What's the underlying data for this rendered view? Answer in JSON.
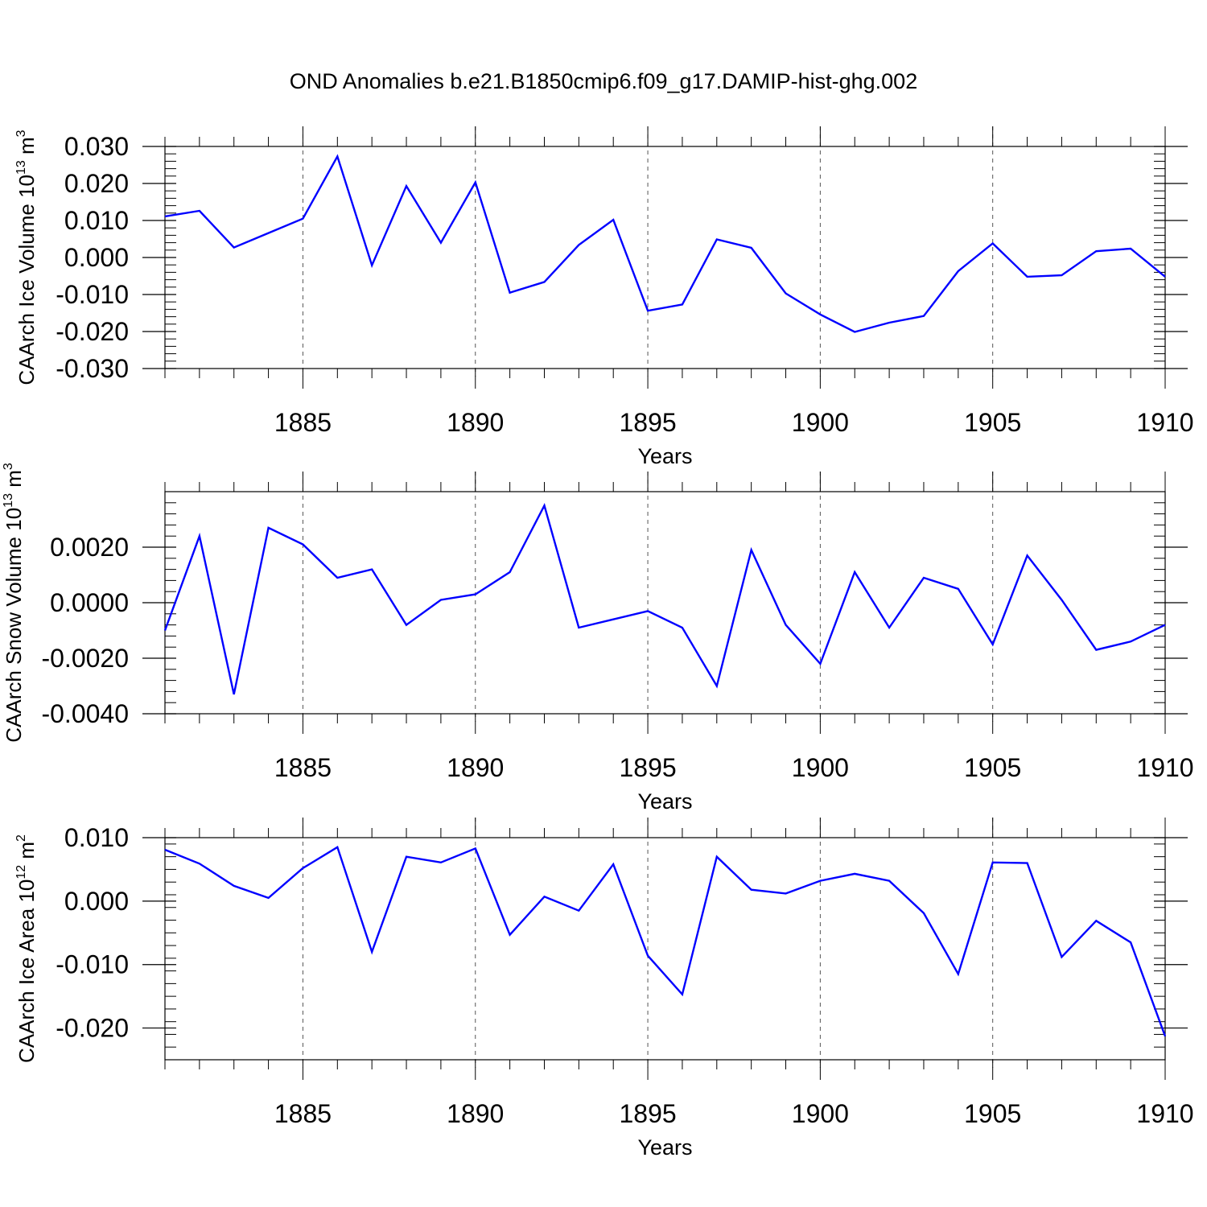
{
  "chart_data": {
    "type": "line",
    "title": "OND Anomalies b.e21.B1850cmip6.f09_g17.DAMIP-hist-ghg.002",
    "line_color": "#0000ff",
    "panels": [
      {
        "name": "ice-volume",
        "ylabel": "CAArch Ice Volume 10",
        "ylabel_exp": "13",
        "ylabel_unit": " m",
        "ylabel_unit_exp": "3",
        "xlabel": "Years",
        "xlim": [
          1881,
          1910
        ],
        "ylim": [
          -0.03,
          0.03
        ],
        "yticks": [
          -0.03,
          -0.02,
          -0.01,
          0.0,
          0.01,
          0.02,
          0.03
        ],
        "ytick_labels": [
          "-0.030",
          "-0.020",
          "-0.010",
          "0.000",
          "0.010",
          "0.020",
          "0.030"
        ],
        "yminor_step": 0.002,
        "xticks": [
          1885,
          1890,
          1895,
          1900,
          1905,
          1910
        ],
        "xtick_labels": [
          "1885",
          "1890",
          "1895",
          "1900",
          "1905",
          "1910"
        ],
        "x": [
          1881,
          1882,
          1883,
          1884,
          1885,
          1886,
          1887,
          1888,
          1889,
          1890,
          1891,
          1892,
          1893,
          1894,
          1895,
          1896,
          1897,
          1898,
          1899,
          1900,
          1901,
          1902,
          1903,
          1904,
          1905,
          1906,
          1907,
          1908,
          1909,
          1910
        ],
        "values": [
          0.0111,
          0.0126,
          0.0027,
          0.0066,
          0.0105,
          0.0273,
          -0.0021,
          0.0193,
          0.004,
          0.0203,
          -0.0095,
          -0.0066,
          0.0034,
          0.0102,
          -0.0144,
          -0.0127,
          0.0049,
          0.0026,
          -0.0097,
          -0.0154,
          -0.0201,
          -0.0176,
          -0.0158,
          -0.0037,
          0.0038,
          -0.0052,
          -0.0048,
          0.0017,
          0.0024,
          -0.0052
        ]
      },
      {
        "name": "snow-volume",
        "ylabel": "CAArch Snow Volume 10",
        "ylabel_exp": "13",
        "ylabel_unit": " m",
        "ylabel_unit_exp": "3",
        "xlabel": "Years",
        "xlim": [
          1881,
          1910
        ],
        "ylim": [
          -0.004,
          0.004
        ],
        "yticks": [
          -0.004,
          -0.002,
          0.0,
          0.002
        ],
        "ytick_labels": [
          "-0.0040",
          "-0.0020",
          "0.0000",
          "0.0020"
        ],
        "yminor_step": 0.0004,
        "xticks": [
          1885,
          1890,
          1895,
          1900,
          1905,
          1910
        ],
        "xtick_labels": [
          "1885",
          "1890",
          "1895",
          "1900",
          "1905",
          "1910"
        ],
        "x": [
          1881,
          1882,
          1883,
          1884,
          1885,
          1886,
          1887,
          1888,
          1889,
          1890,
          1891,
          1892,
          1893,
          1894,
          1895,
          1896,
          1897,
          1898,
          1899,
          1900,
          1901,
          1902,
          1903,
          1904,
          1905,
          1906,
          1907,
          1908,
          1909,
          1910
        ],
        "values": [
          -0.001,
          0.0024,
          -0.0033,
          0.0027,
          0.0021,
          0.0009,
          0.0012,
          -0.0008,
          0.0001,
          0.0003,
          0.0011,
          0.0035,
          -0.0009,
          -0.0006,
          -0.0003,
          -0.0009,
          -0.003,
          0.0019,
          -0.0008,
          -0.0022,
          0.0011,
          -0.0009,
          0.0009,
          0.0005,
          -0.0015,
          0.0017,
          0.0001,
          -0.0017,
          -0.0014,
          -0.0008
        ]
      },
      {
        "name": "ice-area",
        "ylabel": "CAArch Ice Area 10",
        "ylabel_exp": "12",
        "ylabel_unit": " m",
        "ylabel_unit_exp": "2",
        "xlabel": "Years",
        "xlim": [
          1881,
          1910
        ],
        "ylim": [
          -0.025,
          0.01
        ],
        "yticks": [
          -0.02,
          -0.01,
          0.0,
          0.01
        ],
        "ytick_labels": [
          "-0.020",
          "-0.010",
          "0.000",
          "0.010"
        ],
        "yminor_step": 0.002,
        "xticks": [
          1885,
          1890,
          1895,
          1900,
          1905,
          1910
        ],
        "xtick_labels": [
          "1885",
          "1890",
          "1895",
          "1900",
          "1905",
          "1910"
        ],
        "x": [
          1881,
          1882,
          1883,
          1884,
          1885,
          1886,
          1887,
          1888,
          1889,
          1890,
          1891,
          1892,
          1893,
          1894,
          1895,
          1896,
          1897,
          1898,
          1899,
          1900,
          1901,
          1902,
          1903,
          1904,
          1905,
          1906,
          1907,
          1908,
          1909,
          1910
        ],
        "values": [
          0.0081,
          0.0059,
          0.0024,
          0.0005,
          0.0052,
          0.0085,
          -0.008,
          0.007,
          0.0061,
          0.0083,
          -0.0053,
          0.0007,
          -0.0015,
          0.0058,
          -0.0086,
          -0.0147,
          0.007,
          0.0018,
          0.0012,
          0.0032,
          0.0043,
          0.0032,
          -0.0019,
          -0.0115,
          0.0061,
          0.006,
          -0.0088,
          -0.0031,
          -0.0065,
          -0.0213
        ]
      }
    ]
  }
}
